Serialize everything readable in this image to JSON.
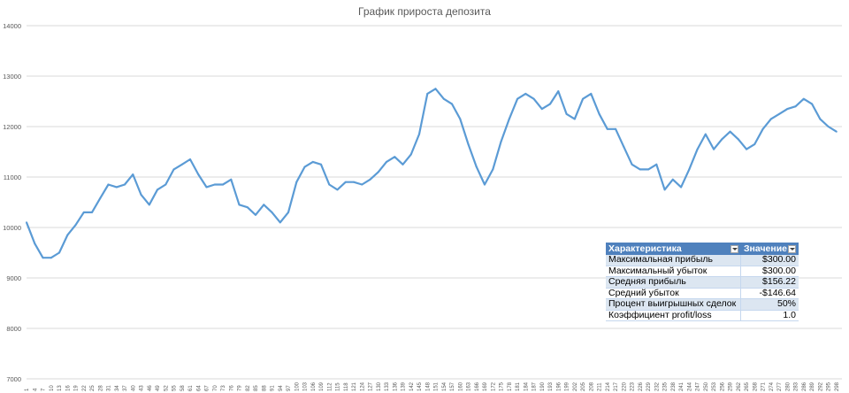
{
  "chart_data": {
    "type": "line",
    "title": "График прироста депозита",
    "ylim": [
      7000,
      14000
    ],
    "yticks": [
      7000,
      8000,
      9000,
      10000,
      11000,
      12000,
      13000,
      14000
    ],
    "grid": true,
    "line_color": "#5b9bd5",
    "x": [
      1,
      4,
      7,
      10,
      13,
      16,
      19,
      22,
      25,
      28,
      31,
      34,
      37,
      40,
      43,
      46,
      49,
      52,
      55,
      58,
      61,
      64,
      67,
      70,
      73,
      76,
      79,
      82,
      85,
      88,
      91,
      94,
      97,
      100,
      103,
      106,
      109,
      112,
      115,
      118,
      121,
      124,
      127,
      130,
      133,
      136,
      139,
      142,
      145,
      148,
      151,
      154,
      157,
      160,
      163,
      166,
      169,
      172,
      175,
      178,
      181,
      184,
      187,
      190,
      193,
      196,
      199,
      202,
      205,
      208,
      211,
      214,
      217,
      220,
      223,
      226,
      229,
      232,
      235,
      238,
      241,
      244,
      247,
      250,
      253,
      256,
      259,
      262,
      265,
      268,
      271,
      274,
      277,
      280,
      283,
      286,
      289,
      292,
      295,
      298
    ],
    "values": [
      10100,
      9680,
      9400,
      9400,
      9500,
      9850,
      10050,
      10300,
      10300,
      10580,
      10850,
      10800,
      10850,
      11050,
      10650,
      10450,
      10750,
      10850,
      11150,
      11250,
      11350,
      11050,
      10800,
      10850,
      10850,
      10950,
      10450,
      10400,
      10250,
      10450,
      10300,
      10100,
      10300,
      10900,
      11200,
      11300,
      11250,
      10850,
      10750,
      10900,
      10900,
      10850,
      10950,
      11100,
      11300,
      11400,
      11250,
      11450,
      11850,
      12650,
      12750,
      12550,
      12450,
      12150,
      11650,
      11200,
      10850,
      11150,
      11700,
      12150,
      12550,
      12650,
      12550,
      12350,
      12450,
      12700,
      12250,
      12150,
      12550,
      12650,
      12250,
      11950,
      11950,
      11600,
      11250,
      11150,
      11150,
      11250,
      10750,
      10950,
      10800,
      11150,
      11550,
      11850,
      11550,
      11750,
      11900,
      11750,
      11550,
      11650,
      11950,
      12150,
      12250,
      12350,
      12400,
      12550,
      12450,
      12150,
      12000,
      11900
    ],
    "xlabel": "",
    "ylabel": ""
  },
  "stats_table": {
    "header": {
      "col1": "Характеристика",
      "col2": "Значение"
    },
    "rows": [
      {
        "label": "Максимальная прибыль",
        "value": "$300.00"
      },
      {
        "label": "Максимальный убыток",
        "value": "$300.00"
      },
      {
        "label": "Средняя прибыль",
        "value": "$156.22"
      },
      {
        "label": "Средний убыток",
        "value": "-$146.64"
      },
      {
        "label": "Процент выигрышных сделок",
        "value": "50%"
      },
      {
        "label": "Коэффициент profit/loss",
        "value": "1.0"
      }
    ]
  }
}
